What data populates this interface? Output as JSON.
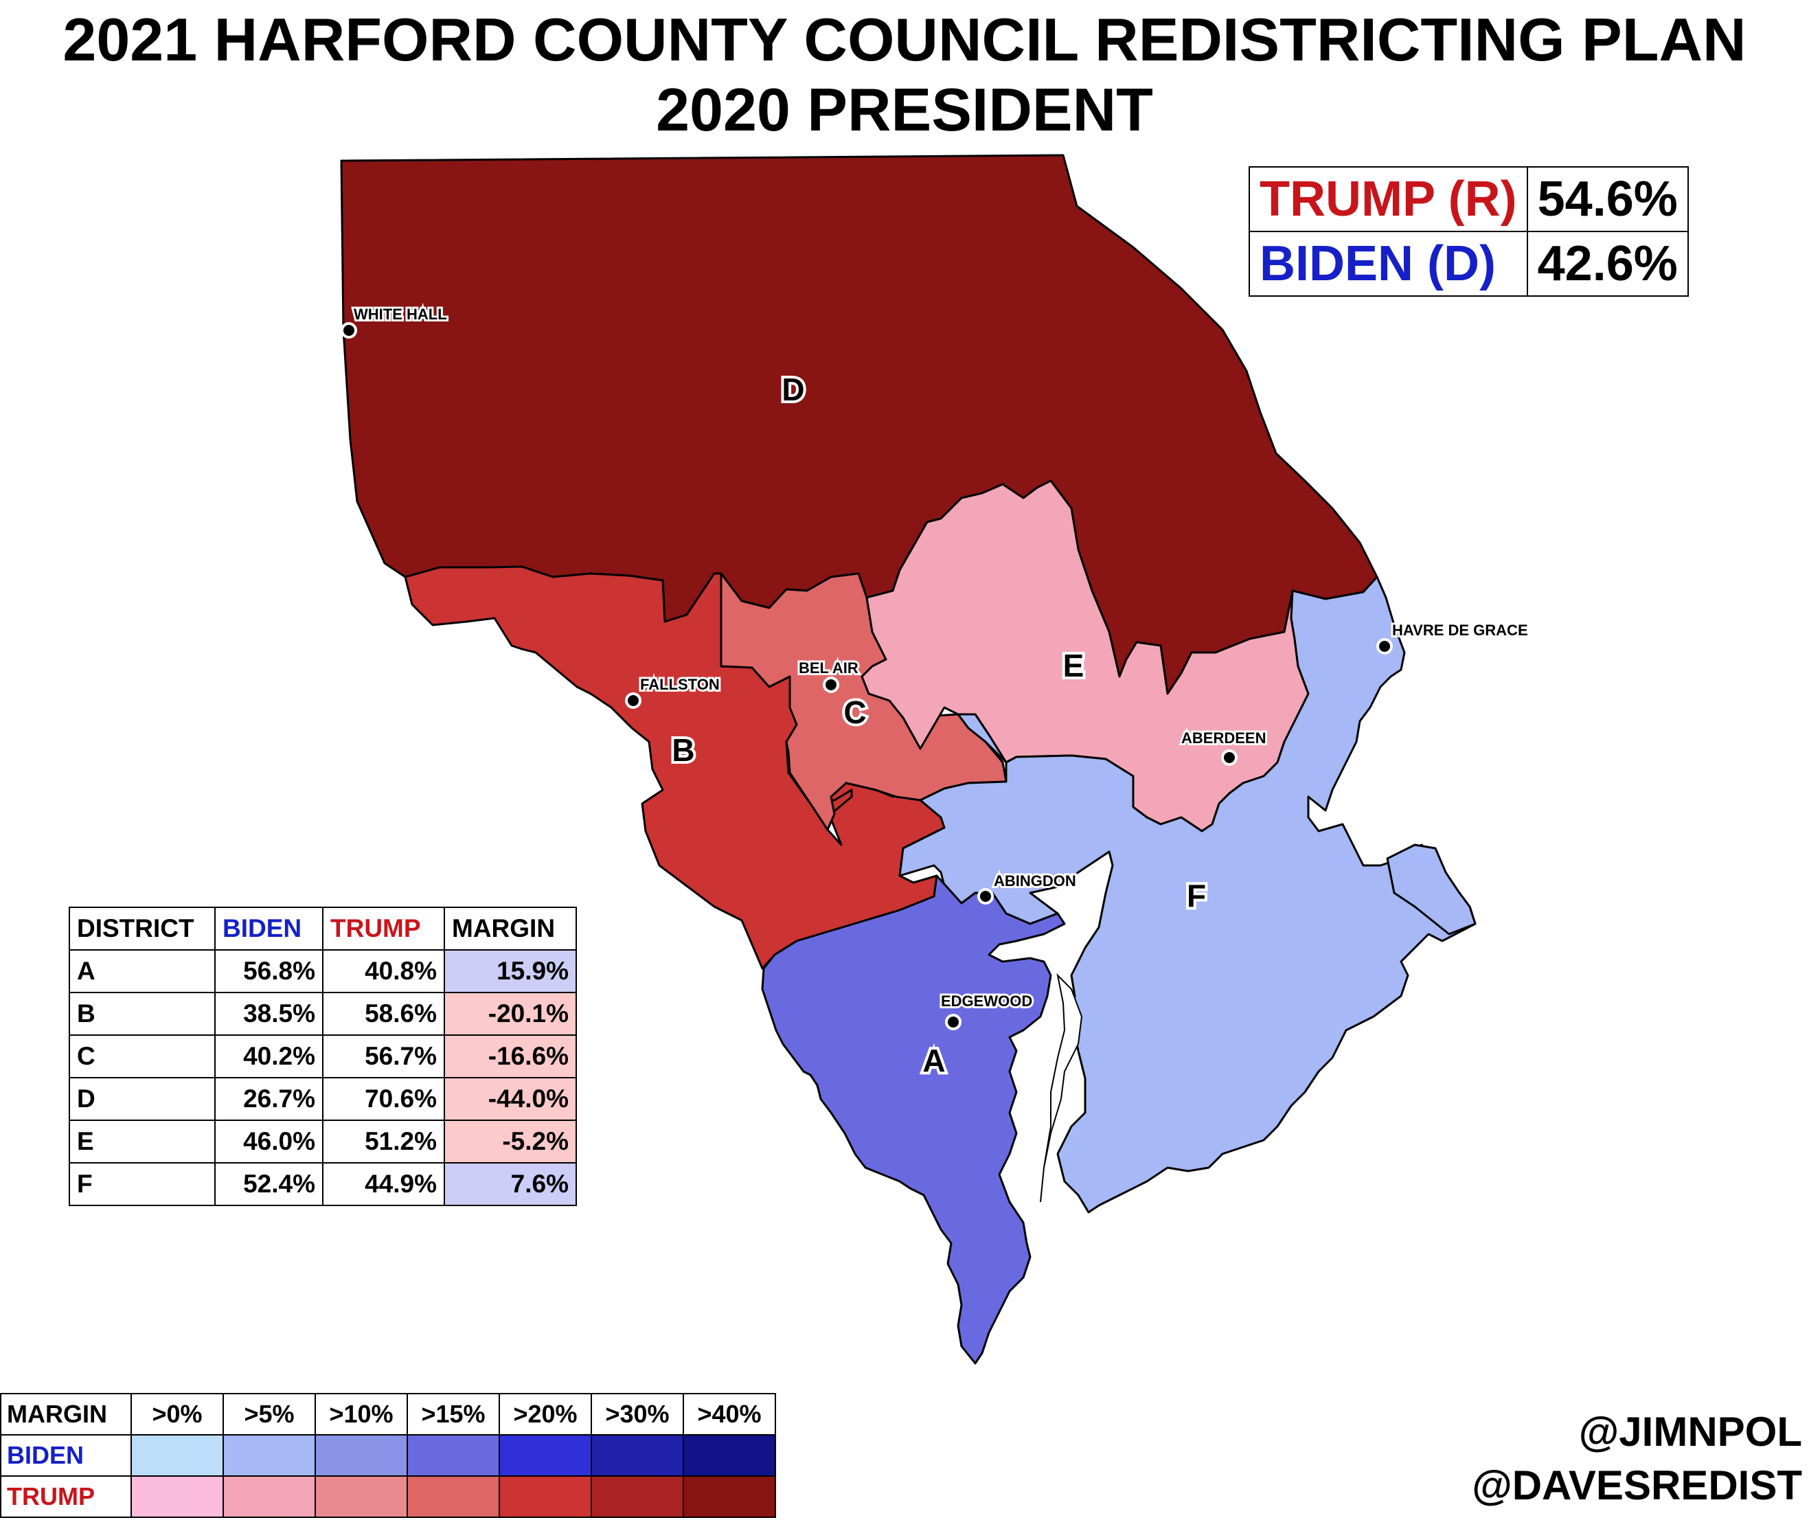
{
  "title_line1": "2021 HARFORD COUNTY COUNCIL REDISTRICTING PLAN",
  "title_line2": "2020 PRESIDENT",
  "colors": {
    "trump_text": "#c8151b",
    "biden_text": "#1520c8",
    "D": "#881414",
    "B": "#cc3333",
    "C": "#de6666",
    "E": "#f3a6b7",
    "F": "#a6b8f5",
    "A": "#6a6ae0",
    "margin_blue_cell": "#cdcdf8",
    "margin_red_cell": "#fccaca"
  },
  "statewide": {
    "trump_label": "TRUMP (R)",
    "trump_pct": "54.6%",
    "biden_label": "BIDEN (D)",
    "biden_pct": "42.6%"
  },
  "districts_map": {
    "A": "A",
    "B": "B",
    "C": "C",
    "D": "D",
    "E": "E",
    "F": "F"
  },
  "cities": {
    "white_hall": "WHITE HALL",
    "fallston": "FALLSTON",
    "bel_air": "BEL AIR",
    "havre_de_grace": "HAVRE DE GRACE",
    "aberdeen": "ABERDEEN",
    "abingdon": "ABINGDON",
    "edgewood": "EDGEWOOD"
  },
  "table": {
    "headers": {
      "district": "DISTRICT",
      "biden": "BIDEN",
      "trump": "TRUMP",
      "margin": "MARGIN"
    },
    "rows": [
      {
        "district": "A",
        "biden": "56.8%",
        "trump": "40.8%",
        "margin": "15.9%"
      },
      {
        "district": "B",
        "biden": "38.5%",
        "trump": "58.6%",
        "margin": "-20.1%"
      },
      {
        "district": "C",
        "biden": "40.2%",
        "trump": "56.7%",
        "margin": "-16.6%"
      },
      {
        "district": "D",
        "biden": "26.7%",
        "trump": "70.6%",
        "margin": "-44.0%"
      },
      {
        "district": "E",
        "biden": "46.0%",
        "trump": "51.2%",
        "margin": "-5.2%"
      },
      {
        "district": "F",
        "biden": "52.4%",
        "trump": "44.9%",
        "margin": "7.6%"
      }
    ]
  },
  "legend": {
    "header": "MARGIN",
    "thresholds": [
      ">0%",
      ">5%",
      ">10%",
      ">15%",
      ">20%",
      ">30%",
      ">40%"
    ],
    "biden_label": "BIDEN",
    "trump_label": "TRUMP",
    "biden_colors": [
      "#bcdef8",
      "#a6b8f5",
      "#8a94e6",
      "#6a6ae0",
      "#3030d8",
      "#2020aa",
      "#12128a"
    ],
    "trump_colors": [
      "#fbbcde",
      "#f3a6b7",
      "#e88a8e",
      "#de6666",
      "#cc3333",
      "#aa2222",
      "#881414"
    ]
  },
  "credits": {
    "line1": "@JIMNPOL",
    "line2": "@DAVESREDIST"
  }
}
